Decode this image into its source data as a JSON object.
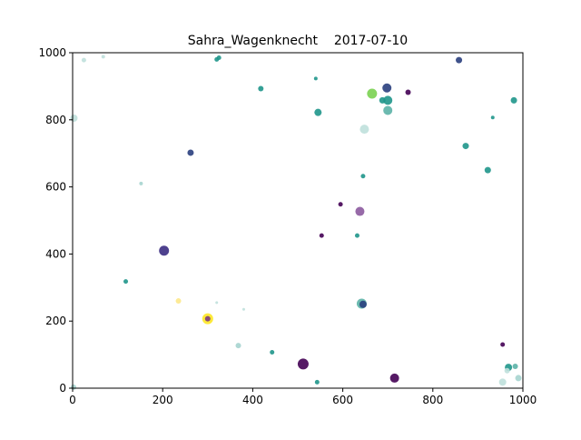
{
  "chart_data": {
    "type": "scatter",
    "title": "Sahra_Wagenknecht    2017-07-10",
    "xlabel": "",
    "ylabel": "",
    "xlim": [
      0,
      1000
    ],
    "ylim": [
      0,
      1000
    ],
    "xticks": [
      "0",
      "200",
      "400",
      "600",
      "800",
      "1000"
    ],
    "yticks": [
      "0",
      "200",
      "400",
      "600",
      "800",
      "1000"
    ],
    "grid": false,
    "colormap": "viridis",
    "points": [
      {
        "x": 25,
        "y": 978,
        "r": 2.5,
        "color": "#bfe0dc"
      },
      {
        "x": 68,
        "y": 988,
        "r": 2,
        "color": "#bfe0dc"
      },
      {
        "x": 3,
        "y": 805,
        "r": 4,
        "color": "#bfe0dc"
      },
      {
        "x": 320,
        "y": 980,
        "r": 2.5,
        "color": "#1f968b"
      },
      {
        "x": 325,
        "y": 985,
        "r": 2.5,
        "color": "#1f968b"
      },
      {
        "x": 418,
        "y": 893,
        "r": 3,
        "color": "#1f968b"
      },
      {
        "x": 540,
        "y": 923,
        "r": 2,
        "color": "#1f968b"
      },
      {
        "x": 545,
        "y": 822,
        "r": 4,
        "color": "#1f968b"
      },
      {
        "x": 858,
        "y": 978,
        "r": 3.5,
        "color": "#2a3f7e"
      },
      {
        "x": 665,
        "y": 878,
        "r": 5.5,
        "color": "#7ad151"
      },
      {
        "x": 698,
        "y": 895,
        "r": 5,
        "color": "#2a3f7e"
      },
      {
        "x": 688,
        "y": 858,
        "r": 3.5,
        "color": "#1f968b"
      },
      {
        "x": 700,
        "y": 858,
        "r": 5,
        "color": "#1f968b"
      },
      {
        "x": 700,
        "y": 828,
        "r": 5,
        "color": "#5cb3a7"
      },
      {
        "x": 745,
        "y": 882,
        "r": 3,
        "color": "#440154"
      },
      {
        "x": 648,
        "y": 772,
        "r": 5,
        "color": "#bfe0dc"
      },
      {
        "x": 980,
        "y": 858,
        "r": 3.5,
        "color": "#1f968b"
      },
      {
        "x": 933,
        "y": 807,
        "r": 2,
        "color": "#1f968b"
      },
      {
        "x": 873,
        "y": 722,
        "r": 3.5,
        "color": "#1f968b"
      },
      {
        "x": 922,
        "y": 650,
        "r": 3.5,
        "color": "#1f968b"
      },
      {
        "x": 262,
        "y": 702,
        "r": 3.5,
        "color": "#2a3f7e"
      },
      {
        "x": 152,
        "y": 610,
        "r": 2,
        "color": "#a6d4cf"
      },
      {
        "x": 645,
        "y": 632,
        "r": 2.5,
        "color": "#1f968b"
      },
      {
        "x": 595,
        "y": 548,
        "r": 2.5,
        "color": "#440154"
      },
      {
        "x": 638,
        "y": 527,
        "r": 5,
        "color": "#8c5a9e"
      },
      {
        "x": 553,
        "y": 455,
        "r": 2.5,
        "color": "#440154"
      },
      {
        "x": 632,
        "y": 455,
        "r": 2.5,
        "color": "#1f968b"
      },
      {
        "x": 203,
        "y": 410,
        "r": 5.5,
        "color": "#3b2c82"
      },
      {
        "x": 118,
        "y": 318,
        "r": 2.5,
        "color": "#1f968b"
      },
      {
        "x": 235,
        "y": 260,
        "r": 3,
        "color": "#fde88a"
      },
      {
        "x": 320,
        "y": 255,
        "r": 1.5,
        "color": "#bfe0dc"
      },
      {
        "x": 380,
        "y": 235,
        "r": 1.5,
        "color": "#bfe0dc"
      },
      {
        "x": 642,
        "y": 252,
        "r": 5.5,
        "color": "#5cb3a7"
      },
      {
        "x": 645,
        "y": 250,
        "r": 4,
        "color": "#2a3f7e"
      },
      {
        "x": 300,
        "y": 207,
        "r": 6,
        "color": "#fde725"
      },
      {
        "x": 300,
        "y": 207,
        "r": 3,
        "color": "#7a3b7e"
      },
      {
        "x": 368,
        "y": 127,
        "r": 3,
        "color": "#a6d4cf"
      },
      {
        "x": 443,
        "y": 107,
        "r": 2.5,
        "color": "#1f968b"
      },
      {
        "x": 512,
        "y": 72,
        "r": 6,
        "color": "#440154"
      },
      {
        "x": 543,
        "y": 18,
        "r": 2.5,
        "color": "#1f968b"
      },
      {
        "x": 715,
        "y": 30,
        "r": 5,
        "color": "#440154"
      },
      {
        "x": 955,
        "y": 130,
        "r": 2.5,
        "color": "#440154"
      },
      {
        "x": 968,
        "y": 62,
        "r": 4,
        "color": "#1f968b"
      },
      {
        "x": 983,
        "y": 65,
        "r": 3,
        "color": "#5cb3a7"
      },
      {
        "x": 990,
        "y": 30,
        "r": 3.5,
        "color": "#a6d4cf"
      },
      {
        "x": 955,
        "y": 18,
        "r": 4,
        "color": "#bfe0dc"
      },
      {
        "x": 965,
        "y": 52,
        "r": 3,
        "color": "#bfe0dc"
      },
      {
        "x": 2,
        "y": 3,
        "r": 3,
        "color": "#a6d4cf"
      }
    ]
  }
}
